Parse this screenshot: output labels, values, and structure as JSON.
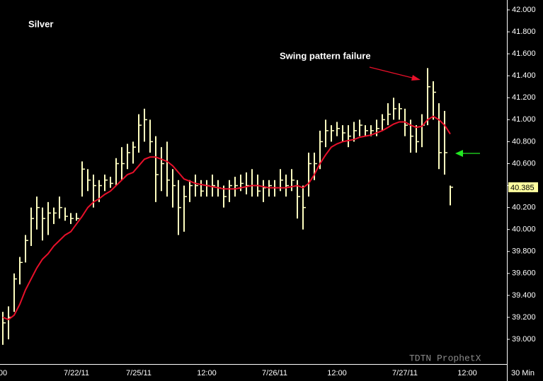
{
  "chart_data": {
    "type": "ohlc",
    "title": "Silver",
    "annotation": "Swing pattern failure",
    "watermark": "TDTN ProphetX",
    "interval_label": "30 Min",
    "bar_color": "#ffffc0",
    "ma_color": "#e8102a",
    "grid": false,
    "categories": [
      "00",
      null,
      null,
      null,
      null,
      null,
      null,
      null,
      null,
      null,
      null,
      null,
      null,
      "7/22/11",
      null,
      null,
      null,
      null,
      null,
      null,
      null,
      null,
      null,
      null,
      "7/25/11",
      null,
      null,
      null,
      null,
      null,
      null,
      null,
      null,
      null,
      null,
      null,
      "12:00",
      null,
      null,
      null,
      null,
      null,
      null,
      null,
      null,
      null,
      null,
      null,
      "7/26/11",
      null,
      null,
      null,
      null,
      null,
      null,
      null,
      null,
      null,
      null,
      "12:00",
      null,
      null,
      null,
      null,
      null,
      null,
      null,
      null,
      null,
      null,
      null,
      "7/27/11",
      null,
      null,
      null,
      null,
      null,
      null,
      null,
      null,
      null,
      null,
      "12:00",
      null,
      null,
      null,
      null,
      null,
      null
    ],
    "high": [
      39.25,
      39.3,
      39.6,
      39.75,
      39.95,
      40.2,
      40.3,
      40.2,
      40.25,
      40.2,
      40.3,
      40.2,
      40.15,
      40.15,
      40.62,
      40.55,
      40.5,
      40.45,
      40.5,
      40.48,
      40.65,
      40.75,
      40.78,
      40.8,
      41.05,
      41.1,
      41.0,
      40.85,
      40.75,
      40.8,
      40.55,
      40.45,
      40.4,
      40.45,
      40.5,
      40.45,
      40.45,
      40.5,
      40.45,
      40.4,
      40.45,
      40.48,
      40.5,
      40.52,
      40.55,
      40.5,
      40.45,
      40.45,
      40.45,
      40.55,
      40.5,
      40.55,
      40.45,
      40.4,
      40.7,
      40.7,
      40.9,
      41.0,
      40.95,
      40.98,
      40.95,
      40.95,
      40.98,
      41.0,
      40.95,
      40.95,
      41.0,
      41.05,
      41.15,
      41.2,
      41.15,
      41.1,
      41.0,
      40.95,
      41.05,
      41.47,
      41.35,
      41.15,
      41.08,
      40.4,
      null,
      null,
      null,
      null,
      null,
      null,
      null,
      null,
      null
    ],
    "low": [
      38.95,
      39.0,
      39.25,
      39.5,
      39.7,
      39.85,
      40.0,
      39.9,
      39.95,
      40.05,
      40.1,
      40.08,
      40.05,
      40.08,
      40.3,
      40.35,
      40.2,
      40.25,
      40.35,
      40.38,
      40.4,
      40.45,
      40.55,
      40.6,
      40.7,
      40.8,
      40.7,
      40.25,
      40.35,
      40.3,
      40.2,
      39.95,
      39.98,
      40.25,
      40.3,
      40.3,
      40.3,
      40.3,
      40.3,
      40.2,
      40.25,
      40.3,
      40.35,
      40.32,
      40.3,
      40.3,
      40.25,
      40.3,
      40.3,
      40.35,
      40.3,
      40.35,
      40.1,
      40.0,
      40.3,
      40.45,
      40.55,
      40.75,
      40.8,
      40.85,
      40.8,
      40.75,
      40.8,
      40.85,
      40.85,
      40.85,
      40.85,
      40.9,
      40.95,
      41.0,
      41.0,
      40.85,
      40.7,
      40.7,
      40.75,
      40.95,
      41.0,
      40.55,
      40.5,
      40.22,
      null,
      null,
      null,
      null,
      null,
      null,
      null,
      null,
      null
    ],
    "close": [
      39.15,
      39.2,
      39.55,
      39.7,
      39.9,
      40.1,
      40.2,
      40.1,
      40.15,
      40.15,
      40.2,
      40.12,
      40.1,
      40.1,
      40.55,
      40.45,
      40.4,
      40.4,
      40.45,
      40.42,
      40.6,
      40.6,
      40.7,
      40.75,
      40.95,
      41.0,
      40.8,
      40.5,
      40.6,
      40.45,
      40.4,
      40.2,
      40.3,
      40.4,
      40.4,
      40.35,
      40.4,
      40.4,
      40.38,
      40.3,
      40.4,
      40.4,
      40.42,
      40.4,
      40.4,
      40.35,
      40.38,
      40.4,
      40.38,
      40.45,
      40.4,
      40.45,
      40.3,
      40.2,
      40.6,
      40.6,
      40.8,
      40.9,
      40.9,
      40.92,
      40.88,
      40.85,
      40.9,
      40.95,
      40.9,
      40.9,
      40.92,
      41.0,
      41.05,
      41.1,
      41.1,
      40.95,
      40.85,
      40.8,
      40.95,
      41.3,
      41.25,
      40.7,
      40.7,
      40.385,
      null,
      null,
      null,
      null,
      null,
      null,
      null,
      null,
      null
    ],
    "ma": [
      39.2,
      39.18,
      39.22,
      39.32,
      39.45,
      39.55,
      39.65,
      39.73,
      39.78,
      39.85,
      39.9,
      39.95,
      39.98,
      40.05,
      40.12,
      40.2,
      40.25,
      40.28,
      40.32,
      40.35,
      40.4,
      40.45,
      40.5,
      40.52,
      40.58,
      40.64,
      40.66,
      40.66,
      40.64,
      40.62,
      40.58,
      40.52,
      40.46,
      40.44,
      40.42,
      40.41,
      40.4,
      40.39,
      40.38,
      40.37,
      40.37,
      40.37,
      40.38,
      40.39,
      40.4,
      40.4,
      40.39,
      40.38,
      40.38,
      40.38,
      40.38,
      40.39,
      40.4,
      40.38,
      40.42,
      40.5,
      40.6,
      40.68,
      40.75,
      40.78,
      40.8,
      40.81,
      40.82,
      40.84,
      40.85,
      40.86,
      40.88,
      40.9,
      40.93,
      40.96,
      40.98,
      40.98,
      40.95,
      40.93,
      40.94,
      41.0,
      41.03,
      41.0,
      40.95,
      40.87,
      null,
      null,
      null,
      null,
      null,
      null,
      null,
      null,
      null
    ],
    "ylim": [
      38.775,
      42.09
    ],
    "yticks": [
      {
        "value": 39.0,
        "label": "39.000"
      },
      {
        "value": 39.2,
        "label": "39.200"
      },
      {
        "value": 39.4,
        "label": "39.400"
      },
      {
        "value": 39.6,
        "label": "39.600"
      },
      {
        "value": 39.8,
        "label": "39.800"
      },
      {
        "value": 40.0,
        "label": "40.000"
      },
      {
        "value": 40.2,
        "label": "40.200"
      },
      {
        "value": 40.4,
        "label": "40.400"
      },
      {
        "value": 40.6,
        "label": "40.600"
      },
      {
        "value": 40.8,
        "label": "40.800"
      },
      {
        "value": 41.0,
        "label": "41.000"
      },
      {
        "value": 41.2,
        "label": "41.200"
      },
      {
        "value": 41.4,
        "label": "41.400"
      },
      {
        "value": 41.6,
        "label": "41.600"
      },
      {
        "value": 41.8,
        "label": "41.800"
      },
      {
        "value": 42.0,
        "label": "42.000"
      }
    ]
  }
}
